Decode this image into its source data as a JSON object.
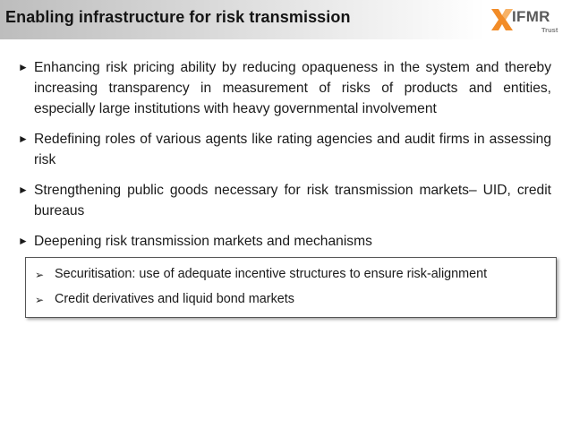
{
  "slide": {
    "title": "Enabling infrastructure for risk transmission",
    "logo": {
      "name": "IFMR",
      "sub": "Trust",
      "icon": "ifmr-cross-logo-icon",
      "colors": {
        "orange": "#f28c28",
        "grey": "#5a5a5a"
      }
    },
    "bullet_marker": "►",
    "sub_marker": "➢",
    "bullets": [
      "Enhancing  risk pricing ability by reducing opaqueness in the system and thereby increasing transparency  in measurement of risks of products and entities, especially large institutions with heavy governmental involvement",
      "Redefining roles of various agents like rating agencies and audit firms in assessing risk",
      "Strengthening public goods necessary for risk transmission markets– UID, credit bureaus",
      "Deepening risk transmission markets and mechanisms"
    ],
    "sub_bullets": [
      "Securitisation: use of adequate incentive structures to ensure risk-alignment",
      "Credit derivatives and liquid bond markets"
    ]
  }
}
